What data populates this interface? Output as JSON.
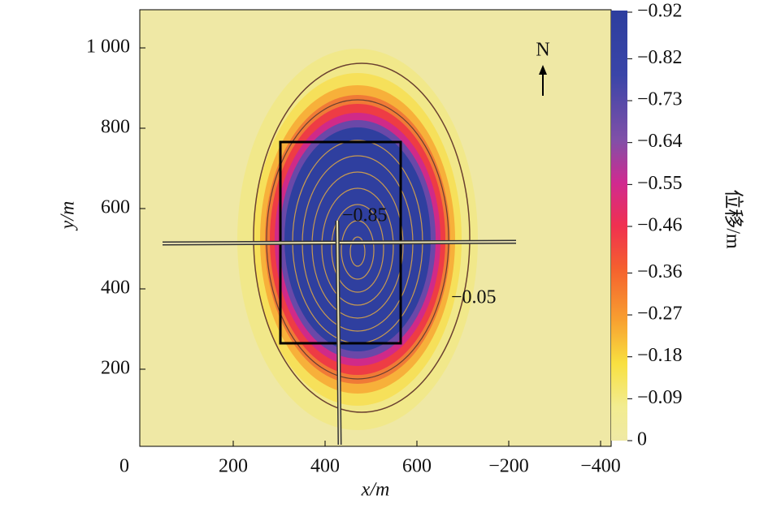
{
  "chart_data": {
    "type": "contour",
    "xlabel": "x/m",
    "ylabel": "y/m",
    "x_tick_labels": [
      "0",
      "200",
      "400",
      "600",
      "−200",
      "−400"
    ],
    "ylim": [
      8,
      1095
    ],
    "yticks": [
      200,
      400,
      600,
      800,
      {
        "value": 1000,
        "label": "1 000"
      }
    ],
    "colorbar": {
      "label": "位移/m",
      "clim": [
        -0.92,
        0
      ],
      "ticks": [
        {
          "value": -0.92,
          "label": "−0.92"
        },
        {
          "value": -0.82,
          "label": "−0.82"
        },
        {
          "value": -0.73,
          "label": "−0.73"
        },
        {
          "value": -0.64,
          "label": "−0.64"
        },
        {
          "value": -0.55,
          "label": "−0.55"
        },
        {
          "value": -0.46,
          "label": "−0.46"
        },
        {
          "value": -0.36,
          "label": "−0.36"
        },
        {
          "value": -0.27,
          "label": "−0.27"
        },
        {
          "value": -0.18,
          "label": "−0.18"
        },
        {
          "value": -0.09,
          "label": "−0.09"
        },
        0
      ]
    },
    "annotations": [
      {
        "text": "−0.85"
      },
      {
        "text": "−0.05"
      },
      {
        "text": "N"
      }
    ]
  }
}
